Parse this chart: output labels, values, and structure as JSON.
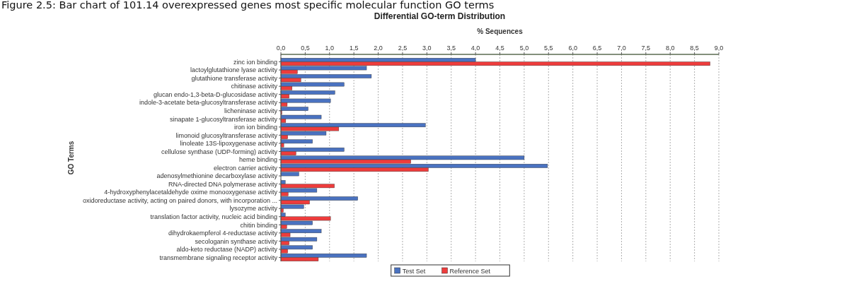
{
  "chart_data": {
    "type": "bar",
    "orientation": "horizontal",
    "title": "Differential GO-term Distribution",
    "annotations": [
      "Figure 2.5: Bar chart of 101.14 overexpressed genes most specific molecular function GO terms"
    ],
    "xlabel": "% Sequences",
    "ylabel": "GO Terms",
    "categories": [
      "zinc ion binding",
      "lactoylglutathione lyase activity",
      "glutathione transferase activity",
      "chitinase activity",
      "glucan endo-1,3-beta-D-glucosidase activity",
      "indole-3-acetate beta-glucosyltransferase activity",
      "licheninase activity",
      "sinapate 1-glucosyltransferase activity",
      "iron ion binding",
      "limonoid glucosyltransferase activity",
      "linoleate 13S-lipoxygenase activity",
      "cellulose synthase (UDP-forming) activity",
      "heme binding",
      "electron carrier activity",
      "adenosylmethionine decarboxylase activity",
      "RNA-directed DNA polymerase activity",
      "4-hydroxyphenylacetaldehyde oxime monooxygenase activity",
      "oxidoreductase activity, acting on paired donors, with incorporation ...",
      "lysozyme activity",
      "translation factor activity, nucleic acid binding",
      "chitin binding",
      "dihydrokaempferol 4-reductase activity",
      "secologanin synthase activity",
      "aldo-keto reductase (NADP) activity",
      "transmembrane signaling receptor activity"
    ],
    "series": [
      {
        "name": "Test Set",
        "color": "#4a72c0",
        "values": [
          4.0,
          1.76,
          1.86,
          1.3,
          1.11,
          1.02,
          0.56,
          0.83,
          2.97,
          0.93,
          0.65,
          1.3,
          5.0,
          5.48,
          0.37,
          0.09,
          0.74,
          1.58,
          0.47,
          0.09,
          0.65,
          0.83,
          0.74,
          0.65,
          1.76
        ]
      },
      {
        "name": "Reference Set",
        "color": "#ee3c3c",
        "values": [
          8.82,
          0.34,
          0.41,
          0.23,
          0.17,
          0.13,
          0.02,
          0.1,
          1.19,
          0.14,
          0.06,
          0.31,
          2.67,
          3.03,
          null,
          1.1,
          0.15,
          0.59,
          0.05,
          1.02,
          0.12,
          0.19,
          0.17,
          0.14,
          0.77
        ]
      }
    ],
    "xlim": [
      0,
      9
    ],
    "xticks": [
      {
        "value": 0,
        "label": "0,0"
      },
      {
        "value": 0.5,
        "label": "0,5"
      },
      {
        "value": 1,
        "label": "1,0"
      },
      {
        "value": 1.5,
        "label": "1,5"
      },
      {
        "value": 2,
        "label": "2,0"
      },
      {
        "value": 2.5,
        "label": "2,5"
      },
      {
        "value": 3,
        "label": "3,0"
      },
      {
        "value": 3.5,
        "label": "3,5"
      },
      {
        "value": 4,
        "label": "4,0"
      },
      {
        "value": 4.5,
        "label": "4,5"
      },
      {
        "value": 5,
        "label": "5,0"
      },
      {
        "value": 5.5,
        "label": "5,5"
      },
      {
        "value": 6,
        "label": "6,0"
      },
      {
        "value": 6.5,
        "label": "6,5"
      },
      {
        "value": 7,
        "label": "7,0"
      },
      {
        "value": 7.5,
        "label": "7,5"
      },
      {
        "value": 8,
        "label": "8,0"
      },
      {
        "value": 8.5,
        "label": "8,5"
      },
      {
        "value": 9,
        "label": "9,0"
      }
    ],
    "grid": "x",
    "legend": "bottom"
  }
}
